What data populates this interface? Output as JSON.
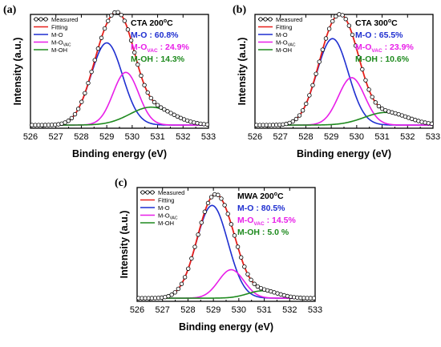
{
  "chart_data": [
    {
      "type": "line",
      "panel_label": "(a)",
      "xlabel": "Binding energy (eV)",
      "ylabel": "Intensity (a.u.)",
      "xlim": [
        526,
        533
      ],
      "x_ticks": [
        526,
        527,
        528,
        529,
        530,
        531,
        532,
        533
      ],
      "legend": [
        {
          "name": "Measured",
          "sub": "",
          "color": "#000000",
          "marker": "circle"
        },
        {
          "name": "Fitting",
          "sub": "",
          "color": "#e8201a",
          "marker": "line"
        },
        {
          "name": "M-O",
          "sub": "",
          "color": "#1f2fd0",
          "marker": "line"
        },
        {
          "name": "M-O",
          "sub": "VAC",
          "color": "#e81ee8",
          "marker": "line"
        },
        {
          "name": "M-OH",
          "sub": "",
          "color": "#1e8a1e",
          "marker": "line"
        }
      ],
      "annotations": [
        {
          "text": "CTA 200",
          "deg": "o",
          "tail": "C",
          "sub": "",
          "color": "#000000"
        },
        {
          "text": "M-O : 60.8%",
          "deg": "",
          "tail": "",
          "sub": "",
          "color": "#1f2fd0"
        },
        {
          "text": "M-O",
          "deg": "",
          "tail": " : 24.9%",
          "sub": "VAC",
          "color": "#e81ee8"
        },
        {
          "text": "M-OH : 14.3%",
          "deg": "",
          "tail": "",
          "sub": "",
          "color": "#1e8a1e"
        }
      ],
      "peaks": [
        {
          "name": "M-O",
          "center": 529.0,
          "sigma": 0.62,
          "amplitude": 0.78
        },
        {
          "name": "M-O VAC",
          "center": 529.75,
          "sigma": 0.5,
          "amplitude": 0.5
        },
        {
          "name": "M-OH",
          "center": 530.75,
          "sigma": 0.85,
          "amplitude": 0.17
        }
      ],
      "baseline": 0.03,
      "ylim": [
        0,
        1.08
      ]
    },
    {
      "type": "line",
      "panel_label": "(b)",
      "xlabel": "Binding energy (eV)",
      "ylabel": "Intensity (a.u.)",
      "xlim": [
        526,
        533
      ],
      "x_ticks": [
        526,
        527,
        528,
        529,
        530,
        531,
        532,
        533
      ],
      "legend": [
        {
          "name": "Measured",
          "sub": "",
          "color": "#000000",
          "marker": "circle"
        },
        {
          "name": "Fitting",
          "sub": "",
          "color": "#e8201a",
          "marker": "line"
        },
        {
          "name": "M-O",
          "sub": "",
          "color": "#1f2fd0",
          "marker": "line"
        },
        {
          "name": "M-O",
          "sub": "VAC",
          "color": "#e81ee8",
          "marker": "line"
        },
        {
          "name": "M-OH",
          "sub": "",
          "color": "#1e8a1e",
          "marker": "line"
        }
      ],
      "annotations": [
        {
          "text": "CTA 300",
          "deg": "o",
          "tail": "C",
          "sub": "",
          "color": "#000000"
        },
        {
          "text": "M-O : 65.5%",
          "deg": "",
          "tail": "",
          "sub": "",
          "color": "#1f2fd0"
        },
        {
          "text": "M-O",
          "deg": "",
          "tail": " : 23.9%",
          "sub": "VAC",
          "color": "#e81ee8"
        },
        {
          "text": "M-OH : 10.6%",
          "deg": "",
          "tail": "",
          "sub": "",
          "color": "#1e8a1e"
        }
      ],
      "peaks": [
        {
          "name": "M-O",
          "center": 529.05,
          "sigma": 0.62,
          "amplitude": 0.82
        },
        {
          "name": "M-O VAC",
          "center": 529.8,
          "sigma": 0.52,
          "amplitude": 0.45
        },
        {
          "name": "M-OH",
          "center": 531.15,
          "sigma": 0.85,
          "amplitude": 0.12
        }
      ],
      "baseline": 0.03,
      "ylim": [
        0,
        1.08
      ]
    },
    {
      "type": "line",
      "panel_label": "(c)",
      "xlabel": "Binding energy (eV)",
      "ylabel": "Intensity (a.u.)",
      "xlim": [
        526,
        533
      ],
      "x_ticks": [
        526,
        527,
        528,
        529,
        530,
        531,
        532,
        533
      ],
      "legend": [
        {
          "name": "Measured",
          "sub": "",
          "color": "#000000",
          "marker": "circle"
        },
        {
          "name": "Fitting",
          "sub": "",
          "color": "#e8201a",
          "marker": "line"
        },
        {
          "name": "M-O",
          "sub": "",
          "color": "#1f2fd0",
          "marker": "line"
        },
        {
          "name": "M-O",
          "sub": "VAC",
          "color": "#e81ee8",
          "marker": "line"
        },
        {
          "name": "M-OH",
          "sub": "",
          "color": "#1e8a1e",
          "marker": "line"
        }
      ],
      "annotations": [
        {
          "text": "MWA 200",
          "deg": "o",
          "tail": "C",
          "sub": "",
          "color": "#000000"
        },
        {
          "text": "M-O : 80.5%",
          "deg": "",
          "tail": "",
          "sub": "",
          "color": "#1f2fd0"
        },
        {
          "text": "M-O",
          "deg": "",
          "tail": " : 14.5%",
          "sub": "VAC",
          "color": "#e81ee8"
        },
        {
          "text": "M-OH : 5.0 %",
          "deg": "",
          "tail": "",
          "sub": "",
          "color": "#1e8a1e"
        }
      ],
      "peaks": [
        {
          "name": "M-O",
          "center": 528.95,
          "sigma": 0.62,
          "amplitude": 0.88
        },
        {
          "name": "M-O VAC",
          "center": 529.7,
          "sigma": 0.5,
          "amplitude": 0.27
        },
        {
          "name": "M-OH",
          "center": 530.95,
          "sigma": 0.6,
          "amplitude": 0.07
        }
      ],
      "baseline": 0.03,
      "ylim": [
        0,
        1.08
      ]
    }
  ]
}
